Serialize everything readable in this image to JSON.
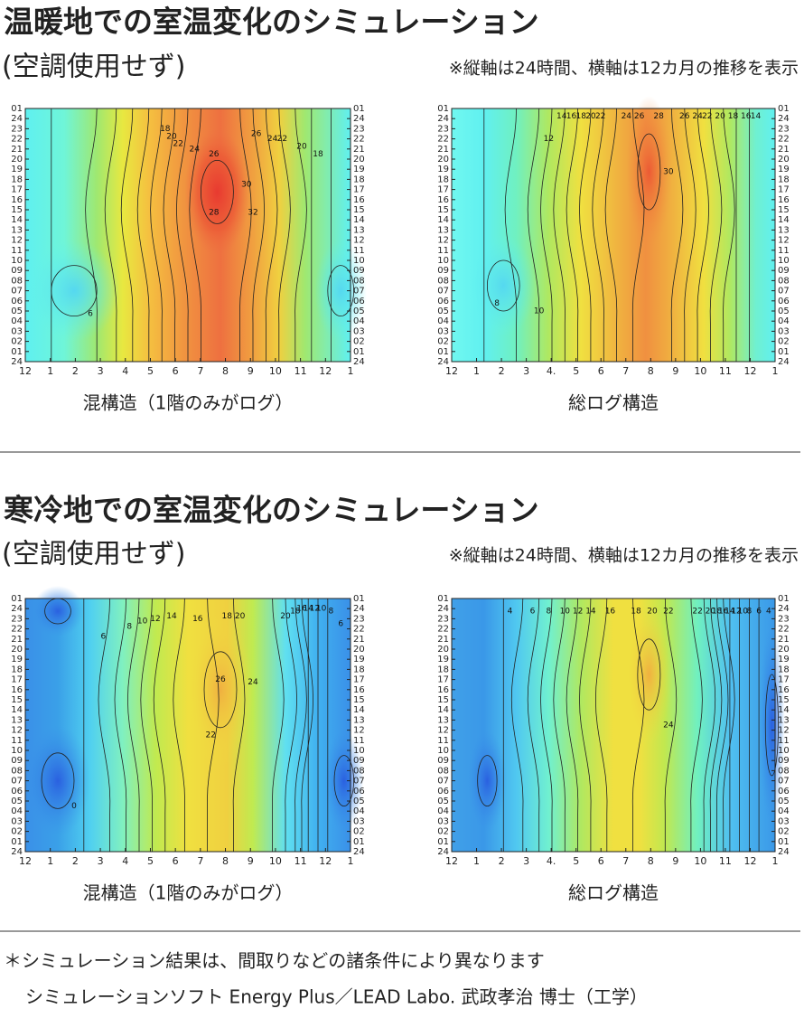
{
  "sections": [
    {
      "title": "温暖地での室温変化のシミュレーション",
      "subtitle": "(空調使用せず)",
      "note": "※縦軸は24時間、横軸は12カ月の推移を表示"
    },
    {
      "title": "寒冷地での室温変化のシミュレーション",
      "subtitle": "(空調使用せず)",
      "note": "※縦軸は24時間、横軸は12カ月の推移を表示"
    }
  ],
  "chart_data": [
    {
      "type": "contour",
      "caption": "混構造（1階のみがログ）",
      "y_categories": [
        "01",
        "24",
        "23",
        "22",
        "21",
        "20",
        "19",
        "18",
        "17",
        "16",
        "15",
        "14",
        "13",
        "12",
        "11",
        "10",
        "09",
        "08",
        "07",
        "06",
        "05",
        "04",
        "03",
        "02",
        "01",
        "24"
      ],
      "x_categories": [
        "12",
        "1",
        "2",
        "3",
        "4",
        "5",
        "6",
        "7",
        "8",
        "9",
        "10",
        "11",
        "12",
        "1"
      ],
      "contour_labels": [
        18,
        20,
        22,
        24,
        26,
        28,
        30,
        32,
        26,
        24,
        22,
        20,
        18,
        6
      ]
    },
    {
      "type": "contour",
      "caption": "総ログ構造",
      "y_categories": [
        "01",
        "24",
        "23",
        "22",
        "21",
        "20",
        "19",
        "18",
        "17",
        "16",
        "15",
        "14",
        "13",
        "12",
        "11",
        "10",
        "09",
        "08",
        "07",
        "06",
        "05",
        "04",
        "03",
        "02",
        "01",
        "24"
      ],
      "x_categories": [
        "12",
        "1",
        "2",
        "3",
        "4.",
        "5",
        "6",
        "7",
        "8",
        "9",
        "10",
        "11",
        "12",
        "1"
      ],
      "contour_labels": [
        14,
        16,
        18,
        20,
        22,
        24,
        26,
        28,
        26,
        24,
        22,
        20,
        18,
        16,
        14,
        12,
        30,
        8,
        10
      ]
    },
    {
      "type": "contour",
      "caption": "混構造（1階のみがログ）",
      "y_categories": [
        "01",
        "24",
        "23",
        "22",
        "21",
        "20",
        "19",
        "18",
        "17",
        "16",
        "15",
        "14",
        "13",
        "12",
        "11",
        "10",
        "09",
        "08",
        "07",
        "06",
        "05",
        "04",
        "03",
        "02",
        "01",
        "24"
      ],
      "x_categories": [
        "12",
        "1",
        "2",
        "3",
        "4",
        "5",
        "6",
        "7",
        "8",
        "9",
        "10",
        "11",
        "12",
        "1"
      ],
      "contour_labels": [
        6,
        8,
        10,
        12,
        14,
        16,
        18,
        20,
        20,
        18,
        16,
        14,
        12,
        10,
        8,
        6,
        26,
        24,
        22,
        0
      ]
    },
    {
      "type": "contour",
      "caption": "総ログ構造",
      "y_categories": [
        "01",
        "24",
        "23",
        "22",
        "21",
        "20",
        "19",
        "18",
        "17",
        "16",
        "15",
        "14",
        "13",
        "12",
        "11",
        "10",
        "09",
        "08",
        "07",
        "06",
        "05",
        "04",
        "03",
        "02",
        "01",
        "24"
      ],
      "x_categories": [
        "12",
        "1",
        "2",
        "3",
        "4.",
        "5",
        "6",
        "7",
        "8",
        "9",
        "10",
        "11",
        "12",
        "1"
      ],
      "contour_labels": [
        4,
        6,
        8,
        10,
        12,
        14,
        16,
        18,
        20,
        22,
        22,
        20,
        18,
        16,
        14,
        12,
        10,
        8,
        6,
        4,
        24
      ]
    }
  ],
  "footnotes": [
    "＊シミュレーション結果は、間取りなどの諸条件により異なります",
    "シミュレーションソフト Energy Plus／LEAD Labo. 武政孝治 博士（工学）"
  ]
}
